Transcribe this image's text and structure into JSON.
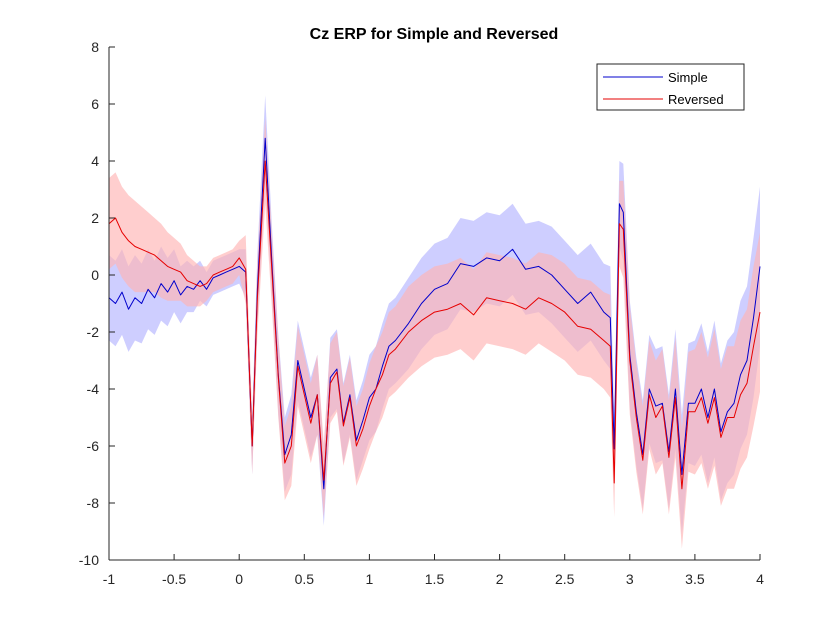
{
  "chart_data": {
    "type": "line",
    "title": "Cz ERP for Simple and Reversed",
    "xlabel": "",
    "ylabel": "",
    "xlim": [
      -1,
      4
    ],
    "ylim": [
      -10,
      8
    ],
    "xticks": [
      -1,
      -0.5,
      0,
      0.5,
      1,
      1.5,
      2,
      2.5,
      3,
      3.5,
      4
    ],
    "xtick_labels": [
      "-1",
      "-0.5",
      "0",
      "0.5",
      "1",
      "1.5",
      "2",
      "2.5",
      "3",
      "3.5",
      "4"
    ],
    "yticks": [
      -10,
      -8,
      -6,
      -4,
      -2,
      0,
      2,
      4,
      6,
      8
    ],
    "ytick_labels": [
      "-10",
      "-8",
      "-6",
      "-4",
      "-2",
      "0",
      "2",
      "4",
      "6",
      "8"
    ],
    "grid": false,
    "legend_position": "top-right",
    "series": [
      {
        "name": "Simple",
        "color": "#0000CC",
        "band_color": "#B3B3FF",
        "x": [
          -1.0,
          -0.95,
          -0.9,
          -0.85,
          -0.8,
          -0.75,
          -0.7,
          -0.65,
          -0.6,
          -0.55,
          -0.5,
          -0.45,
          -0.4,
          -0.35,
          -0.3,
          -0.25,
          -0.2,
          -0.15,
          -0.1,
          -0.05,
          0.0,
          0.05,
          0.1,
          0.14,
          0.2,
          0.25,
          0.3,
          0.35,
          0.4,
          0.45,
          0.5,
          0.55,
          0.6,
          0.65,
          0.7,
          0.75,
          0.8,
          0.85,
          0.9,
          0.95,
          1.0,
          1.05,
          1.1,
          1.15,
          1.2,
          1.3,
          1.4,
          1.5,
          1.6,
          1.7,
          1.8,
          1.9,
          2.0,
          2.1,
          2.2,
          2.3,
          2.4,
          2.5,
          2.6,
          2.7,
          2.8,
          2.85,
          2.88,
          2.92,
          2.95,
          3.0,
          3.05,
          3.1,
          3.15,
          3.2,
          3.25,
          3.3,
          3.35,
          3.4,
          3.45,
          3.5,
          3.55,
          3.6,
          3.65,
          3.7,
          3.75,
          3.8,
          3.85,
          3.9,
          3.95,
          4.0
        ],
        "y": [
          -0.8,
          -1.0,
          -0.6,
          -1.2,
          -0.8,
          -1.0,
          -0.5,
          -0.8,
          -0.3,
          -0.6,
          -0.2,
          -0.7,
          -0.4,
          -0.5,
          -0.2,
          -0.5,
          -0.1,
          0.0,
          0.1,
          0.2,
          0.3,
          0.1,
          -6.0,
          -0.5,
          4.8,
          0.5,
          -3.5,
          -6.3,
          -5.6,
          -3.0,
          -4.0,
          -5.0,
          -4.2,
          -7.5,
          -3.6,
          -3.3,
          -5.2,
          -4.2,
          -5.8,
          -5.1,
          -4.3,
          -4.0,
          -3.2,
          -2.5,
          -2.3,
          -1.7,
          -1.0,
          -0.5,
          -0.3,
          0.4,
          0.3,
          0.6,
          0.5,
          0.9,
          0.2,
          0.3,
          0.0,
          -0.5,
          -1.0,
          -0.6,
          -1.3,
          -1.5,
          -6.1,
          2.5,
          2.2,
          -2.8,
          -4.8,
          -6.3,
          -4.0,
          -4.6,
          -4.5,
          -6.2,
          -4.0,
          -7.0,
          -4.5,
          -4.5,
          -4.0,
          -5.0,
          -4.0,
          -5.5,
          -4.8,
          -4.5,
          -3.5,
          -3.0,
          -1.5,
          0.3
        ],
        "lower": [
          -2.3,
          -2.5,
          -2.1,
          -2.7,
          -2.3,
          -2.4,
          -1.9,
          -2.1,
          -1.6,
          -1.8,
          -1.3,
          -1.7,
          -1.3,
          -1.3,
          -0.9,
          -1.1,
          -0.7,
          -0.6,
          -0.5,
          -0.4,
          -0.3,
          -0.8,
          -7.0,
          -1.8,
          3.3,
          -0.8,
          -4.9,
          -7.6,
          -7.0,
          -4.4,
          -5.4,
          -6.4,
          -5.6,
          -8.8,
          -5.0,
          -4.7,
          -6.6,
          -5.6,
          -7.2,
          -6.5,
          -5.8,
          -5.5,
          -4.7,
          -4.0,
          -3.8,
          -3.3,
          -2.6,
          -2.1,
          -1.9,
          -1.2,
          -1.3,
          -1.0,
          -1.1,
          -0.7,
          -1.4,
          -1.3,
          -1.7,
          -2.2,
          -2.7,
          -2.3,
          -3.0,
          -3.3,
          -7.3,
          1.0,
          0.5,
          -4.7,
          -6.7,
          -8.2,
          -5.9,
          -6.6,
          -6.5,
          -8.2,
          -6.1,
          -9.1,
          -6.6,
          -6.7,
          -6.3,
          -7.3,
          -6.4,
          -7.9,
          -7.3,
          -7.0,
          -6.1,
          -5.6,
          -4.3,
          -2.5
        ],
        "upper": [
          0.7,
          0.5,
          0.9,
          0.3,
          0.7,
          0.4,
          0.9,
          0.5,
          1.0,
          0.6,
          0.9,
          0.3,
          0.5,
          0.3,
          0.5,
          0.1,
          0.5,
          0.6,
          0.7,
          0.8,
          0.9,
          0.9,
          -5.0,
          0.8,
          6.3,
          1.8,
          -2.1,
          -5.0,
          -4.2,
          -1.6,
          -2.6,
          -3.6,
          -2.8,
          -6.2,
          -2.2,
          -1.9,
          -3.8,
          -2.8,
          -4.4,
          -3.7,
          -2.8,
          -2.5,
          -1.7,
          -1.0,
          -0.8,
          -0.1,
          0.6,
          1.1,
          1.3,
          2.0,
          1.9,
          2.2,
          2.1,
          2.5,
          1.8,
          1.9,
          1.7,
          1.2,
          0.7,
          1.1,
          0.4,
          0.3,
          -4.9,
          4.0,
          3.9,
          -0.9,
          -2.9,
          -4.4,
          -2.1,
          -2.6,
          -2.5,
          -4.2,
          -1.9,
          -4.9,
          -2.4,
          -2.3,
          -1.7,
          -2.7,
          -1.6,
          -3.1,
          -2.3,
          -2.0,
          -0.9,
          -0.4,
          1.3,
          3.1
        ]
      },
      {
        "name": "Reversed",
        "color": "#E60000",
        "band_color": "#FFB3B3",
        "x": [
          -1.0,
          -0.95,
          -0.9,
          -0.85,
          -0.8,
          -0.75,
          -0.7,
          -0.65,
          -0.6,
          -0.55,
          -0.5,
          -0.45,
          -0.4,
          -0.35,
          -0.3,
          -0.25,
          -0.2,
          -0.15,
          -0.1,
          -0.05,
          0.0,
          0.05,
          0.1,
          0.14,
          0.2,
          0.25,
          0.3,
          0.35,
          0.4,
          0.45,
          0.5,
          0.55,
          0.6,
          0.65,
          0.7,
          0.75,
          0.8,
          0.85,
          0.9,
          0.95,
          1.0,
          1.05,
          1.1,
          1.15,
          1.2,
          1.3,
          1.4,
          1.5,
          1.6,
          1.7,
          1.8,
          1.9,
          2.0,
          2.1,
          2.2,
          2.3,
          2.4,
          2.5,
          2.6,
          2.7,
          2.8,
          2.85,
          2.88,
          2.92,
          2.95,
          3.0,
          3.05,
          3.1,
          3.15,
          3.2,
          3.25,
          3.3,
          3.35,
          3.4,
          3.45,
          3.5,
          3.55,
          3.6,
          3.65,
          3.7,
          3.75,
          3.8,
          3.85,
          3.9,
          3.95,
          4.0
        ],
        "y": [
          1.8,
          2.0,
          1.5,
          1.2,
          1.0,
          0.9,
          0.8,
          0.7,
          0.5,
          0.3,
          0.2,
          0.1,
          -0.2,
          -0.3,
          -0.4,
          -0.3,
          0.0,
          0.1,
          0.2,
          0.3,
          0.6,
          0.2,
          -6.0,
          -0.8,
          4.0,
          0.2,
          -3.6,
          -6.6,
          -6.0,
          -3.2,
          -4.2,
          -5.2,
          -4.2,
          -7.2,
          -3.8,
          -3.4,
          -5.3,
          -4.3,
          -6.0,
          -5.4,
          -4.6,
          -4.0,
          -3.5,
          -2.8,
          -2.6,
          -2.0,
          -1.6,
          -1.3,
          -1.2,
          -1.0,
          -1.4,
          -0.8,
          -0.9,
          -1.0,
          -1.2,
          -0.8,
          -1.0,
          -1.3,
          -1.8,
          -1.9,
          -2.3,
          -2.5,
          -7.3,
          1.8,
          1.6,
          -3.0,
          -5.0,
          -6.5,
          -4.2,
          -5.0,
          -4.6,
          -6.4,
          -4.3,
          -7.5,
          -4.8,
          -4.8,
          -4.3,
          -5.2,
          -4.3,
          -5.7,
          -5.0,
          -5.0,
          -4.2,
          -3.8,
          -2.5,
          -1.3
        ],
        "lower": [
          0.2,
          0.4,
          -0.1,
          -0.4,
          -0.6,
          -0.6,
          -0.6,
          -0.6,
          -0.8,
          -0.9,
          -0.9,
          -0.9,
          -1.1,
          -1.1,
          -1.1,
          -0.9,
          -0.6,
          -0.5,
          -0.4,
          -0.3,
          0.0,
          -1.0,
          -7.0,
          -2.1,
          2.5,
          -1.1,
          -5.0,
          -7.9,
          -7.4,
          -4.6,
          -5.6,
          -6.6,
          -5.6,
          -8.5,
          -5.2,
          -4.8,
          -6.7,
          -5.7,
          -7.4,
          -6.8,
          -6.1,
          -5.5,
          -5.0,
          -4.3,
          -4.1,
          -3.6,
          -3.2,
          -2.9,
          -2.8,
          -2.6,
          -3.0,
          -2.4,
          -2.5,
          -2.6,
          -2.8,
          -2.4,
          -2.7,
          -3.0,
          -3.5,
          -3.6,
          -4.0,
          -4.3,
          -8.5,
          0.3,
          -0.1,
          -4.9,
          -6.9,
          -8.4,
          -6.1,
          -7.0,
          -6.6,
          -8.4,
          -6.4,
          -9.6,
          -6.9,
          -7.0,
          -6.6,
          -7.5,
          -6.7,
          -8.1,
          -7.5,
          -7.5,
          -6.8,
          -6.4,
          -5.3,
          -4.1
        ],
        "upper": [
          3.4,
          3.6,
          3.1,
          2.8,
          2.6,
          2.4,
          2.2,
          2.0,
          1.8,
          1.5,
          1.3,
          1.1,
          0.7,
          0.5,
          0.3,
          0.3,
          0.6,
          0.7,
          0.8,
          0.9,
          1.2,
          1.4,
          -5.0,
          0.5,
          5.5,
          1.5,
          -2.2,
          -5.3,
          -4.6,
          -1.8,
          -2.8,
          -3.8,
          -2.8,
          -5.9,
          -2.4,
          -2.0,
          -3.9,
          -2.9,
          -4.6,
          -4.0,
          -3.1,
          -2.5,
          -2.0,
          -1.3,
          -1.1,
          -0.4,
          0.0,
          0.3,
          0.4,
          0.6,
          0.2,
          0.8,
          0.7,
          0.6,
          0.4,
          0.8,
          0.7,
          0.4,
          -0.1,
          -0.2,
          -0.6,
          -0.7,
          -6.1,
          3.3,
          3.3,
          -1.1,
          -3.1,
          -4.6,
          -2.3,
          -3.0,
          -2.6,
          -4.4,
          -2.2,
          -5.4,
          -2.7,
          -2.6,
          -2.0,
          -2.9,
          -1.9,
          -3.3,
          -2.5,
          -2.5,
          -1.6,
          -1.2,
          0.3,
          1.5
        ]
      }
    ]
  }
}
